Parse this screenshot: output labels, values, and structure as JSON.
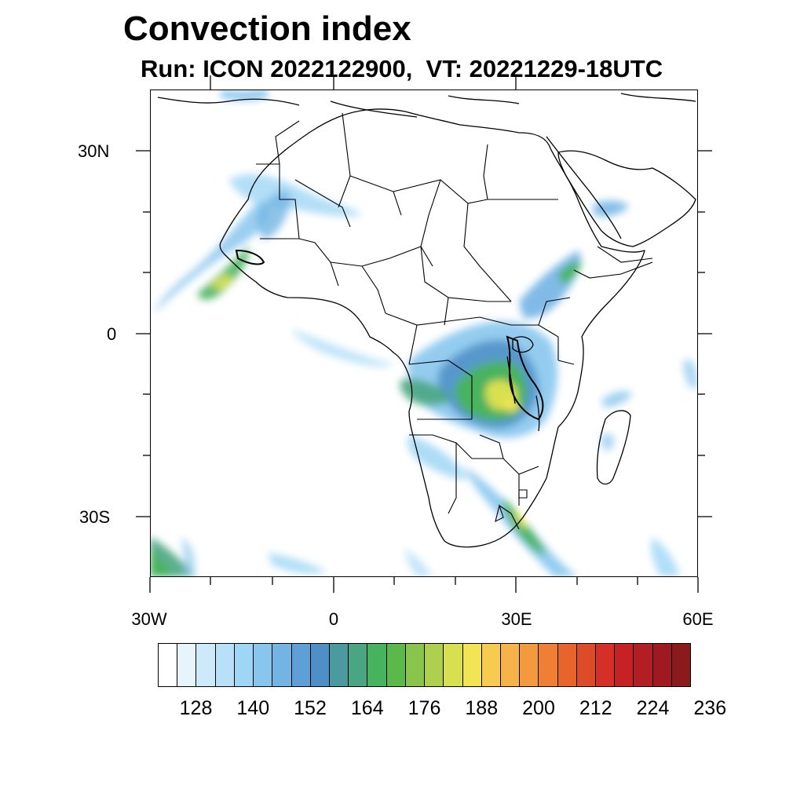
{
  "title": "Convection index",
  "subtitle": "Run: ICON 2022122900,  VT: 20221229-18UTC",
  "map": {
    "lat_labels": [
      "30N",
      "0",
      "30S"
    ],
    "lon_labels": [
      "30W",
      "0",
      "30E",
      "60E"
    ],
    "extent": {
      "lon_min": -30,
      "lon_max": 60,
      "lat_min": -40,
      "lat_max": 40
    }
  },
  "colorbar": {
    "colors": [
      "#ffffff",
      "#e6f4fc",
      "#cdeafa",
      "#b8e1f8",
      "#9fd6f5",
      "#88c6ee",
      "#72b4e4",
      "#5d9fd7",
      "#4f8fc7",
      "#4b9aa0",
      "#4aa682",
      "#48b35f",
      "#5ab94a",
      "#89c44d",
      "#aed04e",
      "#d8e050",
      "#f2e455",
      "#f7cb4f",
      "#f6b349",
      "#f39a3f",
      "#ee7f34",
      "#e7642c",
      "#de4b29",
      "#d52f27",
      "#c62226",
      "#b31e24",
      "#9e1a20",
      "#8a1a1c"
    ],
    "labels": [
      "128",
      "140",
      "152",
      "164",
      "176",
      "188",
      "200",
      "212",
      "224",
      "236"
    ]
  }
}
